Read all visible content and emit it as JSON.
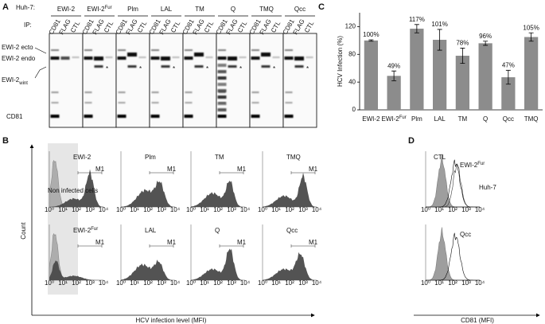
{
  "panel_a": {
    "label": "A",
    "cell_line": "Huh-7:",
    "ip": "IP:",
    "groups": [
      "EWI-2",
      [
        "EWI-2",
        "Fur"
      ],
      "Plm",
      "LAL",
      "TM",
      "Q",
      "TMQ",
      "Qcc"
    ],
    "lanes": [
      "CD81",
      "FLAG",
      "CTL"
    ],
    "bands": [
      "EWI-2 ecto",
      "EWI-2 endo",
      [
        "EWI-2",
        "wint"
      ],
      "CD81"
    ],
    "asterisk": "*"
  },
  "chart_data": {
    "type": "bar",
    "label": "C",
    "y_label": "HCV Infection (%)",
    "categories": [
      "EWI-2",
      [
        "EWI-2",
        "Fur"
      ],
      "Plm",
      "LAL",
      "TM",
      "Q",
      "Qcc",
      "TMQ"
    ],
    "values": [
      100,
      49,
      117,
      101,
      78,
      96,
      47,
      105
    ],
    "value_labels": [
      "100%",
      "49%",
      "117%",
      "101%",
      "78%",
      "96%",
      "47%",
      "105%"
    ],
    "errors": [
      1,
      7,
      6,
      15,
      11,
      3,
      10,
      6
    ],
    "color": "#8c8c8c",
    "ylim": [
      0,
      140
    ],
    "yticks": [
      0,
      40,
      80,
      120
    ]
  },
  "panel_b": {
    "label": "B",
    "y_axis": "Count",
    "x_axis": "HCV infection level (MFI)",
    "control": "Non infected cells",
    "gate": "M1",
    "ticks": [
      "10⁰",
      "10¹",
      "10²",
      "10³",
      "10⁴"
    ],
    "plots": [
      "EWI-2",
      "Plm",
      "TM",
      "TMQ",
      [
        "EWI-2",
        "Fur"
      ],
      "LAL",
      "Q",
      "Qcc"
    ]
  },
  "panel_d": {
    "label": "D",
    "x_axis": "CD81 (MFI)",
    "top": [
      "CTL",
      [
        "EWI-2",
        "Fur"
      ],
      "Huh-7"
    ],
    "bottom": "Qcc"
  }
}
